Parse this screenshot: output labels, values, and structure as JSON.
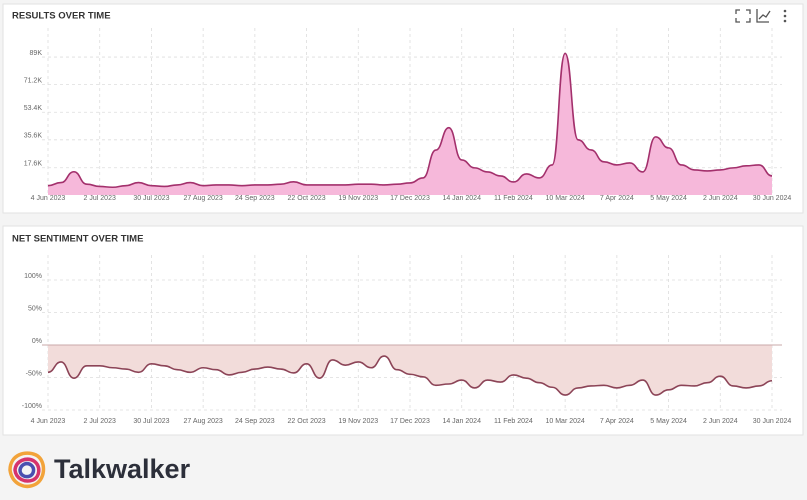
{
  "brand": "Talkwalker",
  "chart_data": [
    {
      "type": "area",
      "title": "RESULTS OVER TIME",
      "categories": [
        "4 Jun 2023",
        null,
        null,
        null,
        "2 Jul 2023",
        null,
        null,
        null,
        "30 Jul 2023",
        null,
        null,
        null,
        "27 Aug 2023",
        null,
        null,
        null,
        "24 Sep 2023",
        null,
        null,
        null,
        "22 Oct 2023",
        null,
        null,
        null,
        "19 Nov 2023",
        null,
        null,
        null,
        "17 Dec 2023",
        null,
        null,
        null,
        "14 Jan 2024",
        null,
        null,
        null,
        "11 Feb 2024",
        null,
        null,
        null,
        "10 Mar 2024",
        null,
        null,
        null,
        "7 Apr 2024",
        null,
        null,
        null,
        "5 May 2024",
        null,
        null,
        null,
        "2 Jun 2024",
        null,
        null,
        null,
        "30 Jun 2024"
      ],
      "values": [
        6000,
        8000,
        15000,
        7000,
        5500,
        5000,
        6000,
        8000,
        6000,
        5500,
        6500,
        8000,
        6000,
        6500,
        6500,
        6000,
        6500,
        6500,
        7000,
        8500,
        6500,
        6500,
        6500,
        6500,
        7000,
        7000,
        6500,
        7000,
        7800,
        11000,
        29000,
        43400,
        22600,
        17500,
        14900,
        12300,
        8400,
        13600,
        11000,
        19400,
        91300,
        35600,
        29100,
        21400,
        19400,
        20700,
        14900,
        37500,
        30400,
        19400,
        16200,
        15500,
        16200,
        17500,
        18800,
        19400,
        12300
      ],
      "color": "#a3306c",
      "fill": "#f6b8da",
      "ylim": [
        0,
        100000
      ],
      "yticks": [
        {
          "value": 17600,
          "label": "17.6K"
        },
        {
          "value": 35600,
          "label": "35.6K"
        },
        {
          "value": 53400,
          "label": "53.4K"
        },
        {
          "value": 71200,
          "label": "71.2K"
        },
        {
          "value": 89000,
          "label": "89K"
        }
      ],
      "grid": true
    },
    {
      "type": "area",
      "title": "NET SENTIMENT OVER TIME",
      "categories": [
        "4 Jun 2023",
        null,
        null,
        null,
        "2 Jul 2023",
        null,
        null,
        null,
        "30 Jul 2023",
        null,
        null,
        null,
        "27 Aug 2023",
        null,
        null,
        null,
        "24 Sep 2023",
        null,
        null,
        null,
        "22 Oct 2023",
        null,
        null,
        null,
        "19 Nov 2023",
        null,
        null,
        null,
        "17 Dec 2023",
        null,
        null,
        null,
        "14 Jan 2024",
        null,
        null,
        null,
        "11 Feb 2024",
        null,
        null,
        null,
        "10 Mar 2024",
        null,
        null,
        null,
        "7 Apr 2024",
        null,
        null,
        null,
        "5 May 2024",
        null,
        null,
        null,
        "2 Jun 2024",
        null,
        null,
        null,
        "30 Jun 2024"
      ],
      "values": [
        -42,
        -26,
        -51,
        -32,
        -32,
        -35,
        -37,
        -42,
        -29,
        -32,
        -38,
        -42,
        -35,
        -38,
        -46,
        -42,
        -37,
        -34,
        -37,
        -43,
        -29,
        -51,
        -23,
        -31,
        -26,
        -35,
        -17,
        -38,
        -45,
        -49,
        -62,
        -60,
        -54,
        -66,
        -54,
        -57,
        -46,
        -51,
        -58,
        -65,
        -77,
        -66,
        -63,
        -62,
        -66,
        -62,
        -54,
        -77,
        -69,
        -62,
        -63,
        -58,
        -48,
        -63,
        -66,
        -63,
        -55
      ],
      "color": "#8c4457",
      "fill": "#f2dcda",
      "ylim": [
        -100,
        120
      ],
      "yticks": [
        {
          "value": 100,
          "label": "100%"
        },
        {
          "value": 50,
          "label": "50%"
        },
        {
          "value": 0,
          "label": "0%"
        },
        {
          "value": -50,
          "label": "-50%"
        },
        {
          "value": -100,
          "label": "-100%"
        }
      ],
      "grid": true
    }
  ]
}
